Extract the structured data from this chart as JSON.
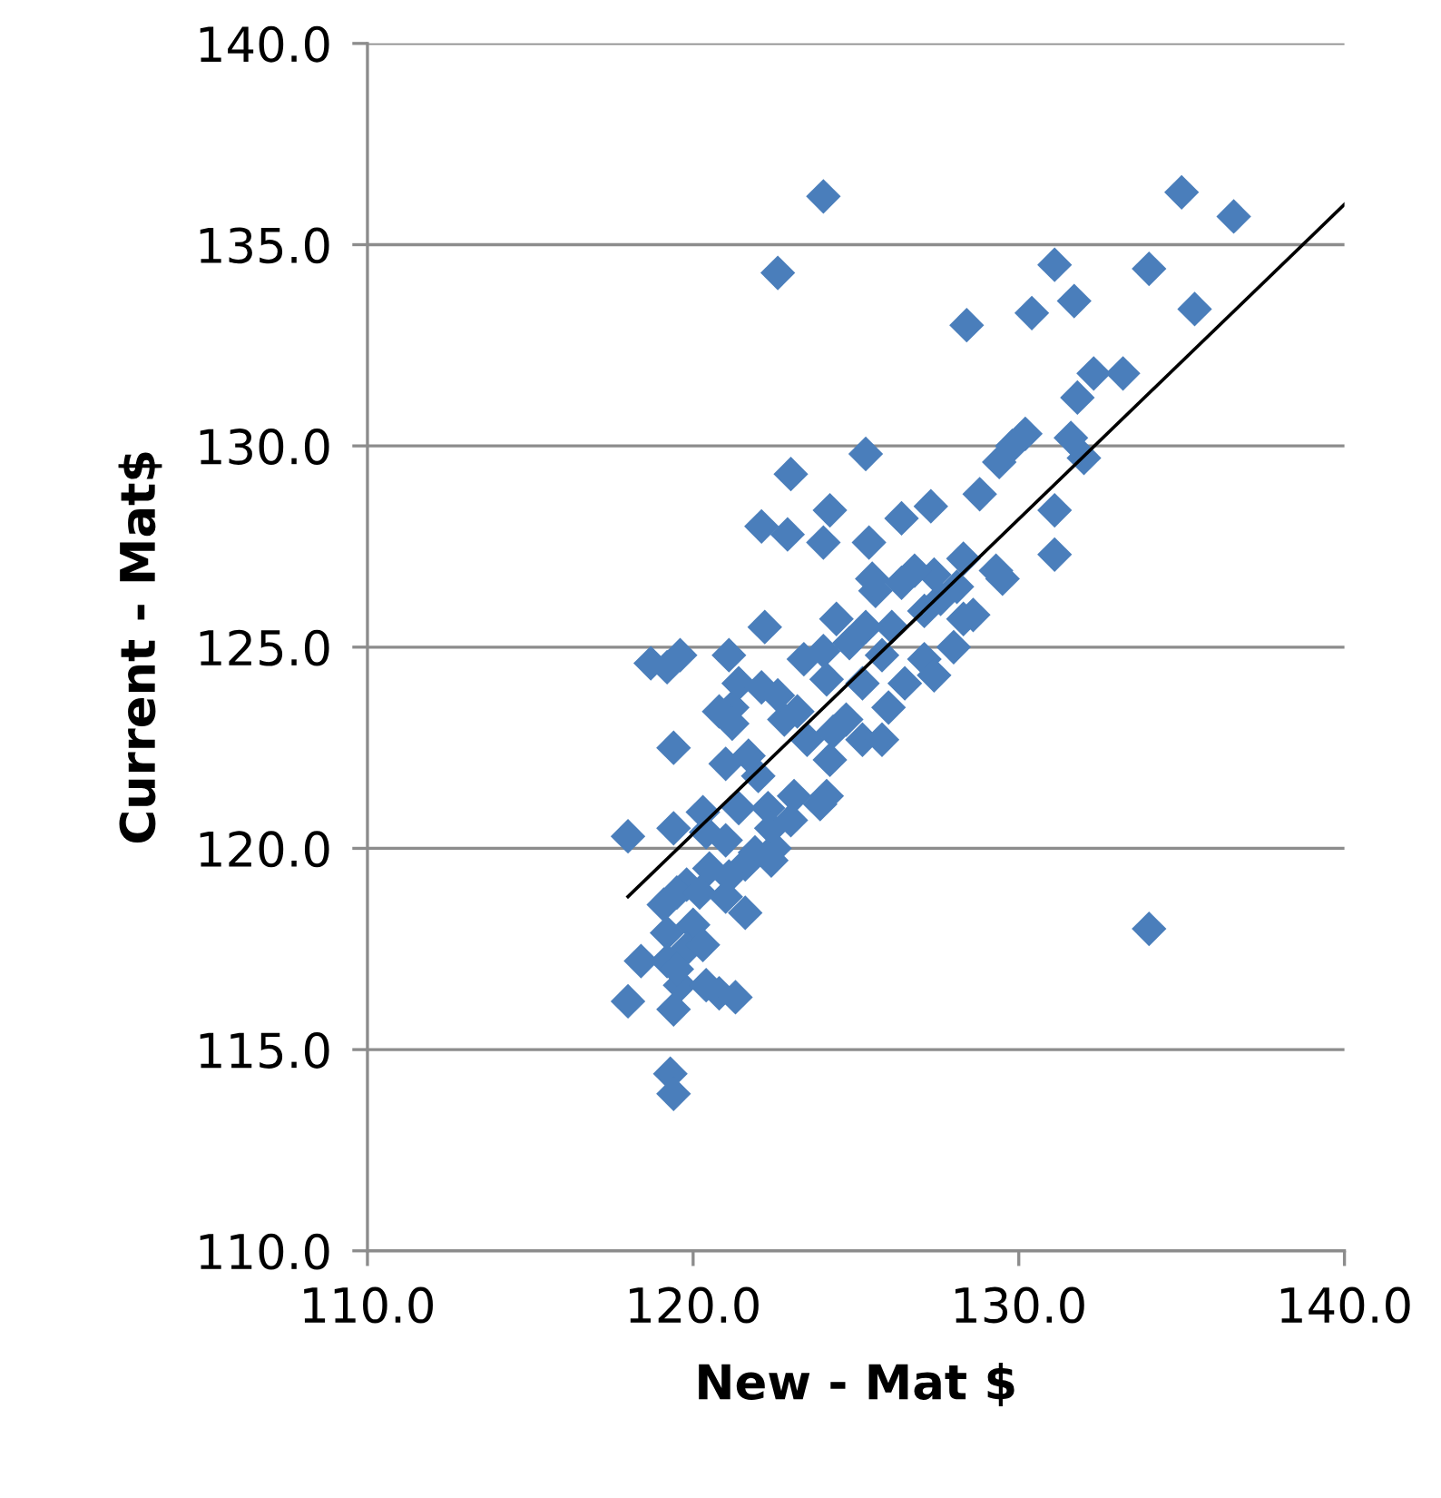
{
  "chart_data": {
    "type": "scatter",
    "xlabel": "New - Mat $",
    "ylabel": "Current - Mat$",
    "xlim": [
      110,
      140
    ],
    "ylim": [
      110,
      140
    ],
    "xticks": [
      {
        "value": 110,
        "label": "110.0"
      },
      {
        "value": 120,
        "label": "120.0"
      },
      {
        "value": 130,
        "label": "130.0"
      },
      {
        "value": 140,
        "label": "140.0"
      }
    ],
    "yticks": [
      {
        "value": 110,
        "label": "110.0"
      },
      {
        "value": 115,
        "label": "115.0"
      },
      {
        "value": 120,
        "label": "120.0"
      },
      {
        "value": 125,
        "label": "125.0"
      },
      {
        "value": 130,
        "label": "130.0"
      },
      {
        "value": 135,
        "label": "135.0"
      },
      {
        "value": 140,
        "label": "140.0"
      }
    ],
    "grid": "y",
    "marker": "diamond",
    "series": [
      {
        "color": "#4a7ebb",
        "x": [
          124.0,
          135.0,
          136.6,
          122.6,
          131.1,
          134.0,
          131.7,
          130.4,
          135.4,
          128.4,
          133.2,
          132.3,
          131.8,
          131.6,
          132.0,
          130.2,
          129.8,
          129.4,
          125.3,
          123.0,
          128.8,
          127.3,
          126.4,
          124.2,
          122.1,
          122.9,
          124.0,
          125.4,
          131.1,
          131.1,
          128.3,
          128.1,
          127.4,
          126.8,
          126.4,
          125.6,
          125.5,
          127.6,
          129.3,
          129.5,
          128.6,
          128.3,
          127.1,
          126.1,
          125.3,
          124.4,
          122.2,
          124.8,
          124.0,
          123.4,
          121.1,
          119.6,
          118.7,
          119.2,
          121.4,
          122.1,
          122.6,
          122.8,
          121.2,
          120.8,
          121.2,
          124.1,
          124.7,
          125.2,
          126.0,
          126.5,
          127.1,
          127.4,
          128.0,
          125.8,
          125.2,
          124.3,
          123.5,
          123.2,
          124.2,
          124.1,
          123.9,
          125.8,
          119.4,
          121.7,
          121.0,
          122.0,
          122.3,
          123.1,
          121.4,
          120.3,
          119.4,
          118.0,
          120.4,
          121.0,
          122.4,
          122.5,
          123.0,
          121.6,
          121.1,
          120.5,
          119.8,
          119.5,
          119.1,
          120.2,
          121.0,
          121.6,
          120.0,
          119.2,
          119.8,
          118.4,
          119.2,
          119.6,
          120.4,
          118.0,
          119.4,
          120.8,
          121.3,
          134.0,
          119.3,
          119.4,
          119.5,
          120.3,
          121.9,
          122.4
        ],
        "values": [
          136.2,
          136.3,
          135.7,
          134.3,
          134.5,
          134.4,
          133.6,
          133.3,
          133.4,
          133.0,
          131.8,
          131.8,
          131.2,
          130.2,
          129.7,
          130.3,
          130.0,
          129.6,
          129.8,
          129.3,
          128.8,
          128.5,
          128.2,
          128.4,
          128.0,
          127.8,
          127.6,
          127.6,
          128.4,
          127.3,
          127.2,
          126.5,
          126.8,
          126.9,
          126.6,
          126.4,
          126.7,
          126.2,
          126.9,
          126.7,
          125.8,
          125.7,
          125.9,
          125.5,
          125.5,
          125.7,
          125.5,
          125.1,
          124.9,
          124.7,
          124.8,
          124.8,
          124.6,
          124.5,
          124.1,
          124.0,
          123.8,
          123.2,
          123.5,
          123.4,
          123.1,
          124.2,
          123.2,
          122.7,
          123.5,
          124.1,
          124.7,
          124.3,
          125.0,
          124.8,
          124.1,
          122.9,
          122.7,
          123.4,
          122.2,
          121.3,
          121.1,
          122.7,
          122.5,
          122.3,
          122.1,
          121.8,
          121.0,
          121.3,
          121.0,
          120.9,
          120.5,
          120.3,
          120.4,
          120.2,
          120.5,
          120.0,
          120.7,
          119.6,
          119.3,
          119.5,
          119.1,
          118.9,
          118.6,
          118.9,
          118.8,
          118.4,
          118.1,
          117.9,
          117.5,
          117.2,
          117.2,
          116.6,
          116.6,
          116.2,
          116.0,
          116.4,
          116.3,
          118.0,
          114.4,
          113.9,
          117.0,
          117.6,
          119.9,
          119.7
        ]
      },
      {
        "type": "line",
        "color": "#000000",
        "marker": "none",
        "x": [
          118.0,
          140.0
        ],
        "values": [
          118.8,
          136.0
        ]
      }
    ]
  }
}
